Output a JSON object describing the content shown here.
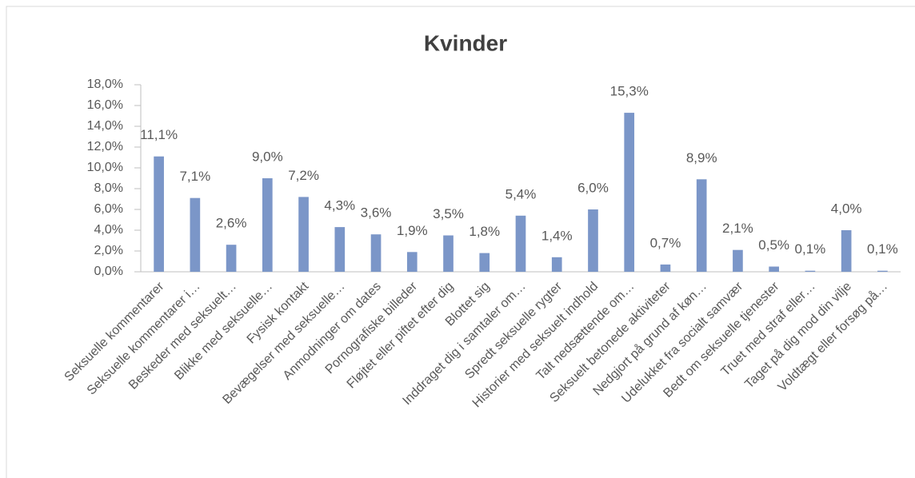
{
  "chart_data": {
    "type": "bar",
    "title": "Kvinder",
    "categories": [
      "Seksuelle kommentarer",
      "Seksuelle kommentarer i…",
      "Beskeder med seksuelt…",
      "Blikke med seksuelle…",
      "Fysisk kontakt",
      "Bevægelser med seksuelle…",
      "Anmodninger om dates",
      "Pornografiske billeder",
      "Fløjtet eller piftet efter dig",
      "Blottet sig",
      "Inddraget dig i samtaler om…",
      "Spredt seksuelle rygter",
      "Historier med seksuelt indhold",
      "Talt nedsættende om…",
      "Seksuelt betonede aktiviteter",
      "Nedgjort på grund af køn…",
      "Udelukket fra socialt samvær",
      "Bedt om seksuelle tjenester",
      "Truet med straf eller…",
      "Taget på dig mod din vilje",
      "Voldtægt eller forsøg på…"
    ],
    "values": [
      11.1,
      7.1,
      2.6,
      9.0,
      7.2,
      4.3,
      3.6,
      1.9,
      3.5,
      1.8,
      5.4,
      1.4,
      6.0,
      15.3,
      0.7,
      8.9,
      2.1,
      0.5,
      0.1,
      4.0,
      0.1
    ],
    "value_labels": [
      "11,1%",
      "7,1%",
      "2,6%",
      "9,0%",
      "7,2%",
      "4,3%",
      "3,6%",
      "1,9%",
      "3,5%",
      "1,8%",
      "5,4%",
      "1,4%",
      "6,0%",
      "15,3%",
      "0,7%",
      "8,9%",
      "2,1%",
      "0,5%",
      "0,1%",
      "4,0%",
      "0,1%"
    ],
    "color": "#7b96c8",
    "ylim": [
      0,
      18
    ],
    "yticks": [
      {
        "value": 0,
        "label": "0,0%"
      },
      {
        "value": 2,
        "label": "2,0%"
      },
      {
        "value": 4,
        "label": "4,0%"
      },
      {
        "value": 6,
        "label": "6,0%"
      },
      {
        "value": 8,
        "label": "8,0%"
      },
      {
        "value": 10,
        "label": "10,0%"
      },
      {
        "value": 12,
        "label": "12,0%"
      },
      {
        "value": 14,
        "label": "14,0%"
      },
      {
        "value": 16,
        "label": "16,0%"
      },
      {
        "value": 18,
        "label": "18,0%"
      }
    ]
  }
}
